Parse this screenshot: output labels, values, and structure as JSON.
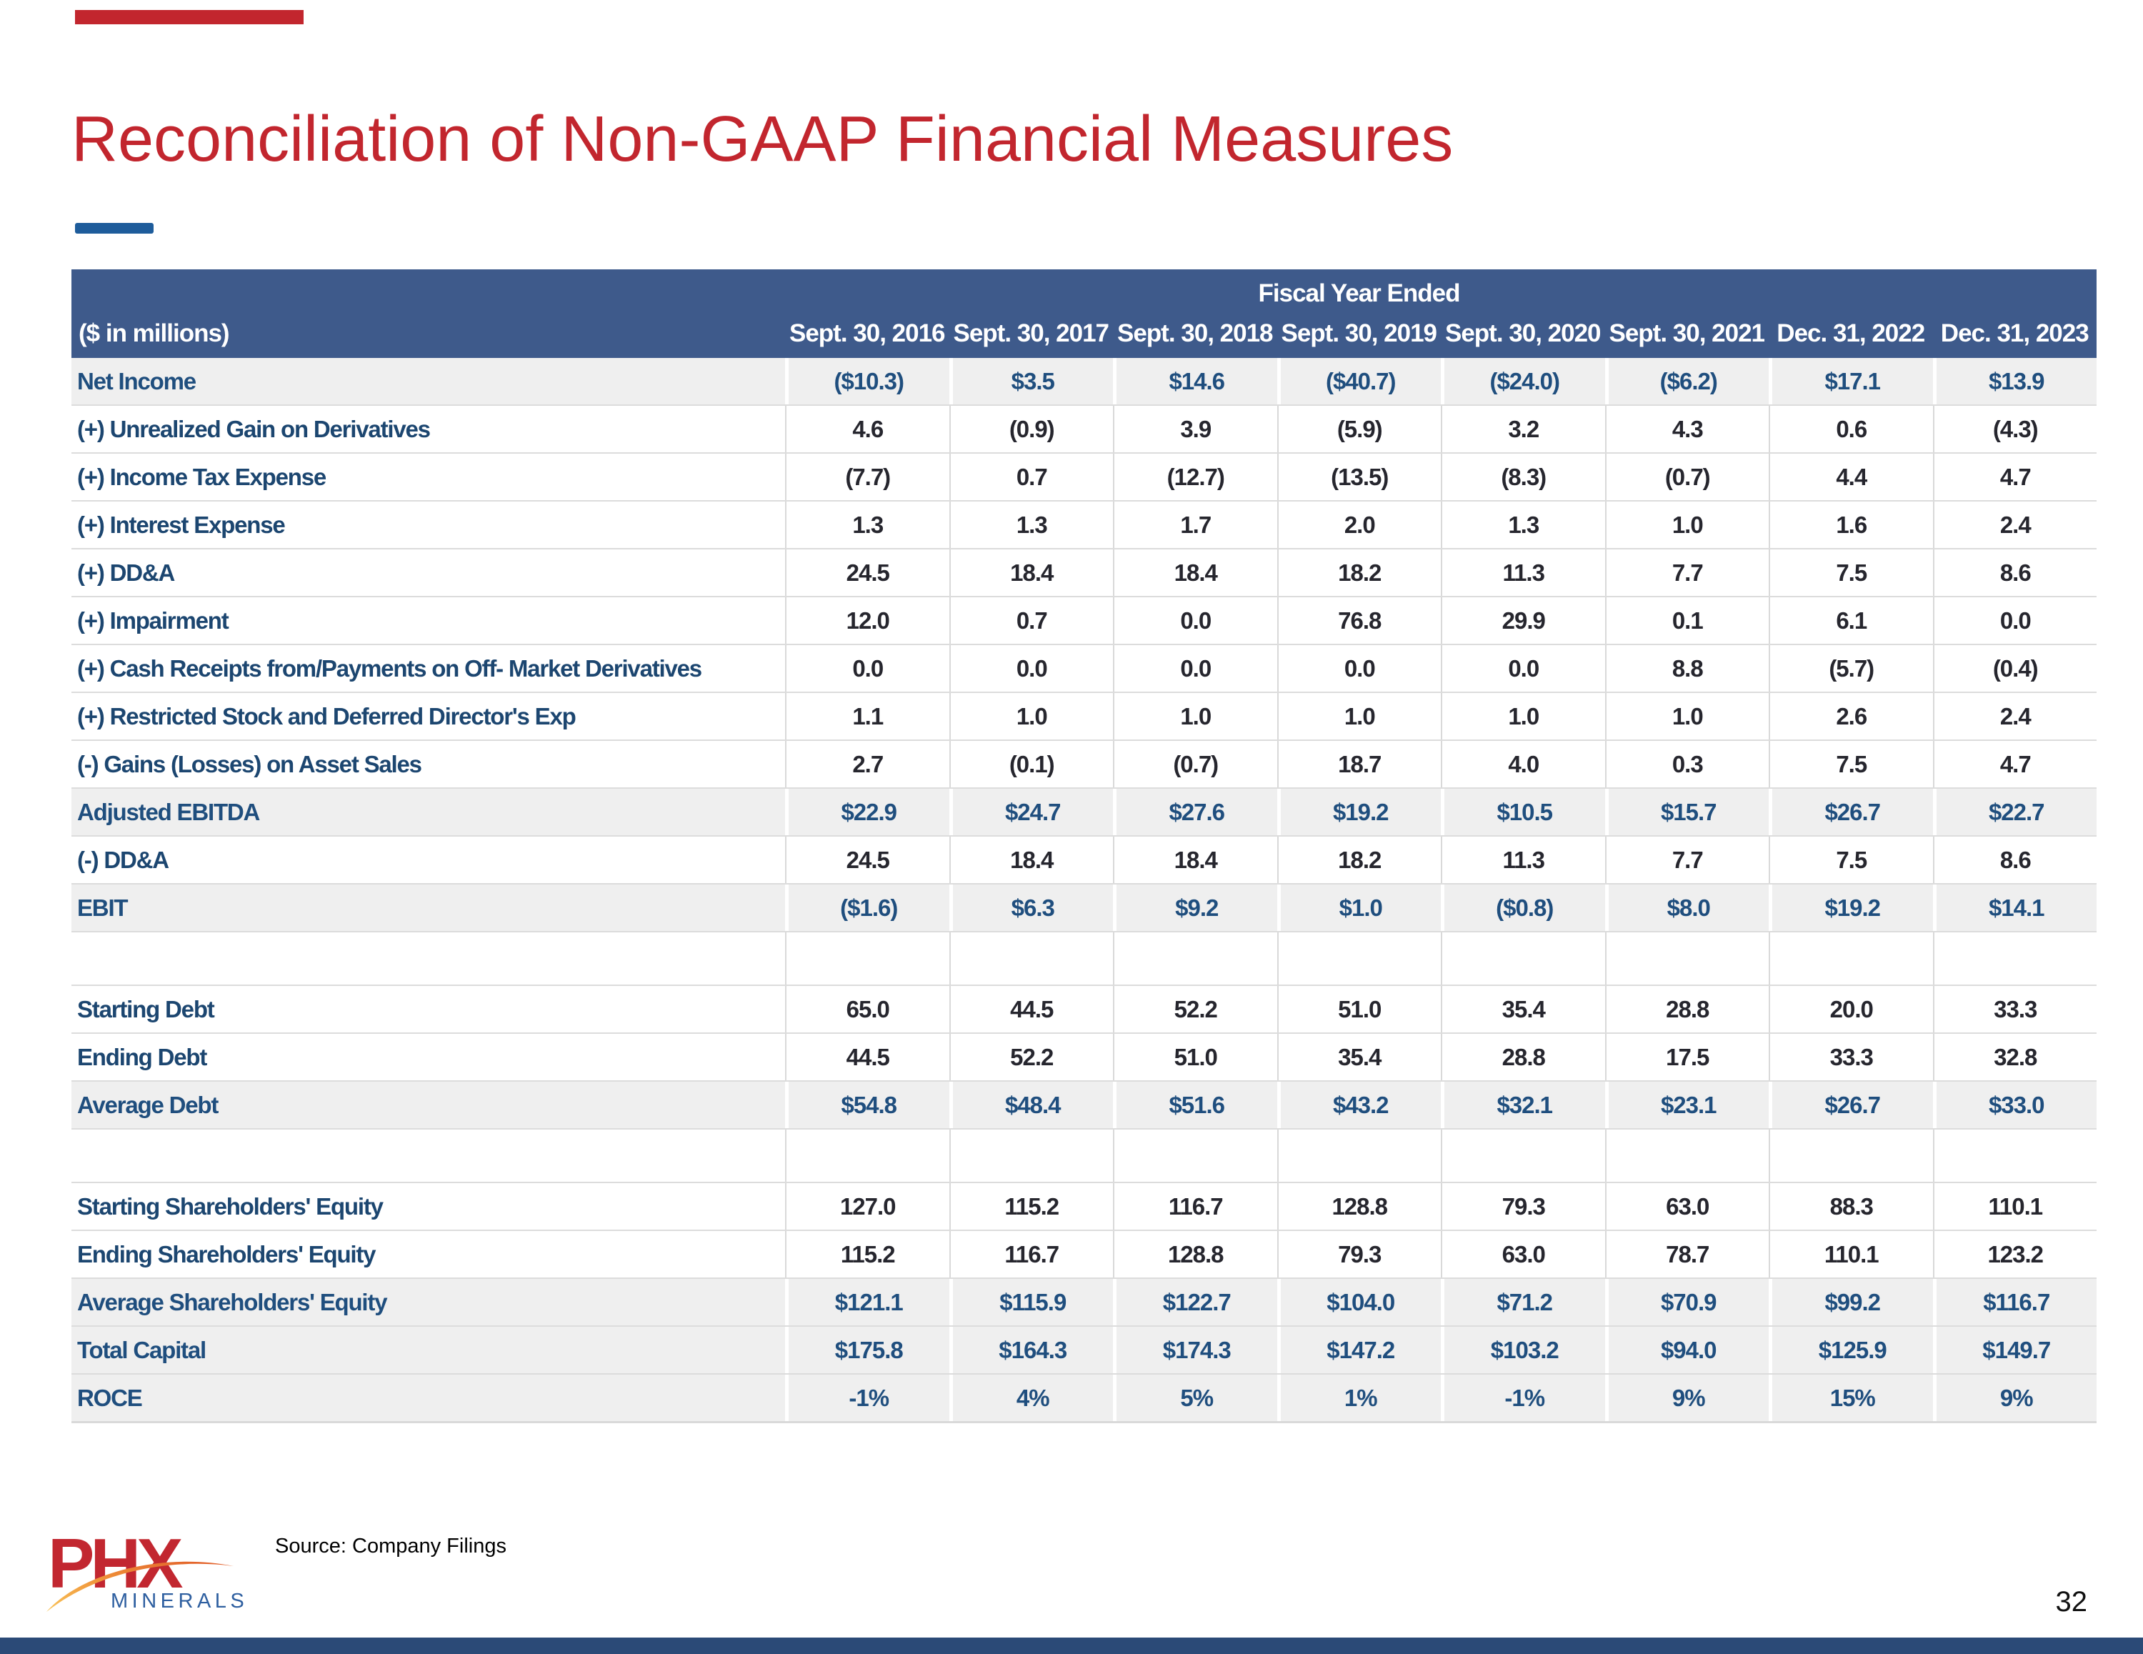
{
  "title": "Reconciliation of Non-GAAP Financial Measures",
  "footer": {
    "source": "Source: Company Filings",
    "page_number": "32"
  },
  "logo": {
    "text": "PHX",
    "subtitle": "MINERALS"
  },
  "colors": {
    "title_red": "#C2262E",
    "header_blue": "#3E5A8B",
    "label_navy": "#1C4670",
    "total_value_blue": "#1F4E7E",
    "regular_value": "#26262E",
    "shaded_row": "#EFEFEF",
    "footer_bar_navy": "#2B4A77",
    "dash_blue": "#1E5C9B",
    "logo_red": "#C22730",
    "logo_minerals_blue": "#2E5FA0",
    "logo_swoosh_orange": "#F0953A"
  },
  "table": {
    "group_header": "Fiscal Year Ended",
    "unit_label": "($ in millions)",
    "columns": [
      "Sept. 30, 2016",
      "Sept. 30, 2017",
      "Sept. 30, 2018",
      "Sept. 30, 2019",
      "Sept. 30, 2020",
      "Sept. 30, 2021",
      "Dec. 31, 2022",
      "Dec. 31, 2023"
    ],
    "rows": [
      {
        "label": "Net Income",
        "style": "total",
        "values": [
          "($10.3)",
          "$3.5",
          "$14.6",
          "($40.7)",
          "($24.0)",
          "($6.2)",
          "$17.1",
          "$13.9"
        ]
      },
      {
        "label": "(+) Unrealized Gain on Derivatives",
        "style": "regular",
        "values": [
          "4.6",
          "(0.9)",
          "3.9",
          "(5.9)",
          "3.2",
          "4.3",
          "0.6",
          "(4.3)"
        ]
      },
      {
        "label": "(+) Income Tax Expense",
        "style": "regular",
        "values": [
          "(7.7)",
          "0.7",
          "(12.7)",
          "(13.5)",
          "(8.3)",
          "(0.7)",
          "4.4",
          "4.7"
        ]
      },
      {
        "label": "(+) Interest Expense",
        "style": "regular",
        "values": [
          "1.3",
          "1.3",
          "1.7",
          "2.0",
          "1.3",
          "1.0",
          "1.6",
          "2.4"
        ]
      },
      {
        "label": "(+) DD&A",
        "style": "regular",
        "values": [
          "24.5",
          "18.4",
          "18.4",
          "18.2",
          "11.3",
          "7.7",
          "7.5",
          "8.6"
        ]
      },
      {
        "label": "(+) Impairment",
        "style": "regular",
        "values": [
          "12.0",
          "0.7",
          "0.0",
          "76.8",
          "29.9",
          "0.1",
          "6.1",
          "0.0"
        ]
      },
      {
        "label": "(+) Cash Receipts from/Payments on Off- Market Derivatives",
        "style": "regular",
        "values": [
          "0.0",
          "0.0",
          "0.0",
          "0.0",
          "0.0",
          "8.8",
          "(5.7)",
          "(0.4)"
        ]
      },
      {
        "label": "(+) Restricted Stock and Deferred Director's Exp",
        "style": "regular",
        "values": [
          "1.1",
          "1.0",
          "1.0",
          "1.0",
          "1.0",
          "1.0",
          "2.6",
          "2.4"
        ]
      },
      {
        "label": "(-) Gains (Losses) on Asset Sales",
        "style": "regular",
        "values": [
          "2.7",
          "(0.1)",
          "(0.7)",
          "18.7",
          "4.0",
          "0.3",
          "7.5",
          "4.7"
        ]
      },
      {
        "label": "Adjusted EBITDA",
        "style": "total",
        "values": [
          "$22.9",
          "$24.7",
          "$27.6",
          "$19.2",
          "$10.5",
          "$15.7",
          "$26.7",
          "$22.7"
        ]
      },
      {
        "label": "(-) DD&A",
        "style": "regular",
        "values": [
          "24.5",
          "18.4",
          "18.4",
          "18.2",
          "11.3",
          "7.7",
          "7.5",
          "8.6"
        ]
      },
      {
        "label": "EBIT",
        "style": "total",
        "values": [
          "($1.6)",
          "$6.3",
          "$9.2",
          "$1.0",
          "($0.8)",
          "$8.0",
          "$19.2",
          "$14.1"
        ]
      },
      {
        "label": "",
        "style": "spacer",
        "values": [
          "",
          "",
          "",
          "",
          "",
          "",
          "",
          ""
        ]
      },
      {
        "label": "Starting Debt",
        "style": "regular",
        "values": [
          "65.0",
          "44.5",
          "52.2",
          "51.0",
          "35.4",
          "28.8",
          "20.0",
          "33.3"
        ]
      },
      {
        "label": "Ending Debt",
        "style": "regular",
        "values": [
          "44.5",
          "52.2",
          "51.0",
          "35.4",
          "28.8",
          "17.5",
          "33.3",
          "32.8"
        ]
      },
      {
        "label": "Average Debt",
        "style": "total",
        "values": [
          "$54.8",
          "$48.4",
          "$51.6",
          "$43.2",
          "$32.1",
          "$23.1",
          "$26.7",
          "$33.0"
        ]
      },
      {
        "label": "",
        "style": "spacer",
        "values": [
          "",
          "",
          "",
          "",
          "",
          "",
          "",
          ""
        ]
      },
      {
        "label": "Starting Shareholders' Equity",
        "style": "regular",
        "values": [
          "127.0",
          "115.2",
          "116.7",
          "128.8",
          "79.3",
          "63.0",
          "88.3",
          "110.1"
        ]
      },
      {
        "label": "Ending Shareholders' Equity",
        "style": "regular",
        "values": [
          "115.2",
          "116.7",
          "128.8",
          "79.3",
          "63.0",
          "78.7",
          "110.1",
          "123.2"
        ]
      },
      {
        "label": "Average Shareholders' Equity",
        "style": "total",
        "values": [
          "$121.1",
          "$115.9",
          "$122.7",
          "$104.0",
          "$71.2",
          "$70.9",
          "$99.2",
          "$116.7"
        ]
      },
      {
        "label": "Total Capital",
        "style": "total",
        "values": [
          "$175.8",
          "$164.3",
          "$174.3",
          "$147.2",
          "$103.2",
          "$94.0",
          "$125.9",
          "$149.7"
        ]
      },
      {
        "label": "ROCE",
        "style": "total",
        "values": [
          "-1%",
          "4%",
          "5%",
          "1%",
          "-1%",
          "9%",
          "15%",
          "9%"
        ]
      }
    ]
  }
}
